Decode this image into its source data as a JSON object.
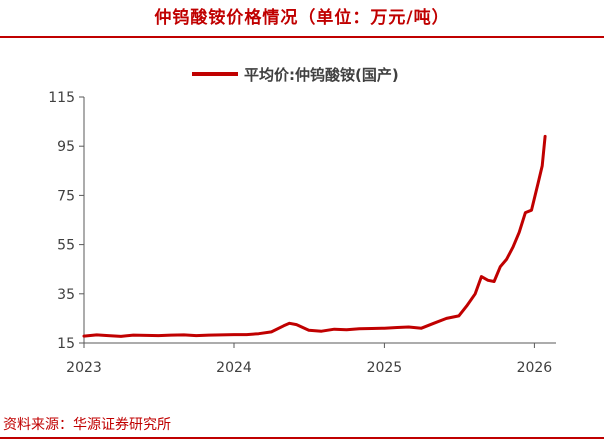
{
  "header": {
    "title": "仲钨酸铵价格情况（单位：万元/吨）"
  },
  "footer": {
    "source": "资料来源：华源证券研究所"
  },
  "chart_data": {
    "type": "line",
    "title": "仲钨酸铵价格情况（单位：万元/吨）",
    "xlabel": "",
    "ylabel": "",
    "ylim": [
      15,
      115
    ],
    "yticks": [
      15,
      35,
      55,
      75,
      95,
      115
    ],
    "xlim": [
      "2023-01-01",
      "2026-04-01"
    ],
    "xticks": [
      {
        "label": "2023",
        "date": "2023-01-01"
      },
      {
        "label": "2024",
        "date": "2024-01-01"
      },
      {
        "label": "2025",
        "date": "2025-01-01"
      },
      {
        "label": "2026",
        "date": "2026-01-01"
      }
    ],
    "grid": false,
    "legend": "top-center",
    "colors": {
      "line": "#c00000",
      "axis": "#595959"
    },
    "series": [
      {
        "name": "平均价:仲钨酸铵(国产)",
        "points": [
          [
            "2023-01-01",
            17.8
          ],
          [
            "2023-02-01",
            18.3
          ],
          [
            "2023-03-01",
            18.0
          ],
          [
            "2023-04-01",
            17.7
          ],
          [
            "2023-05-01",
            18.2
          ],
          [
            "2023-06-01",
            18.1
          ],
          [
            "2023-07-01",
            18.0
          ],
          [
            "2023-08-01",
            18.2
          ],
          [
            "2023-09-01",
            18.3
          ],
          [
            "2023-10-01",
            18.0
          ],
          [
            "2023-11-01",
            18.2
          ],
          [
            "2023-12-01",
            18.3
          ],
          [
            "2024-01-01",
            18.4
          ],
          [
            "2024-02-01",
            18.4
          ],
          [
            "2024-03-01",
            18.8
          ],
          [
            "2024-04-01",
            19.5
          ],
          [
            "2024-05-01",
            22.0
          ],
          [
            "2024-05-15",
            23.0
          ],
          [
            "2024-06-01",
            22.5
          ],
          [
            "2024-07-01",
            20.2
          ],
          [
            "2024-08-01",
            19.8
          ],
          [
            "2024-09-01",
            20.6
          ],
          [
            "2024-10-01",
            20.4
          ],
          [
            "2024-11-01",
            20.8
          ],
          [
            "2024-12-01",
            20.9
          ],
          [
            "2025-01-01",
            21.0
          ],
          [
            "2025-02-01",
            21.3
          ],
          [
            "2025-03-01",
            21.5
          ],
          [
            "2025-04-01",
            21.0
          ],
          [
            "2025-05-01",
            23.0
          ],
          [
            "2025-06-01",
            25.0
          ],
          [
            "2025-07-01",
            26.0
          ],
          [
            "2025-07-20",
            30.0
          ],
          [
            "2025-08-10",
            35.0
          ],
          [
            "2025-08-25",
            42.0
          ],
          [
            "2025-09-10",
            40.5
          ],
          [
            "2025-09-25",
            40.0
          ],
          [
            "2025-10-10",
            46.0
          ],
          [
            "2025-10-25",
            49.0
          ],
          [
            "2025-11-10",
            54.0
          ],
          [
            "2025-11-25",
            60.0
          ],
          [
            "2025-12-10",
            68.0
          ],
          [
            "2025-12-25",
            69.0
          ],
          [
            "2026-01-10",
            80.0
          ],
          [
            "2026-01-20",
            87.0
          ],
          [
            "2026-01-27",
            99.0
          ]
        ]
      }
    ]
  }
}
